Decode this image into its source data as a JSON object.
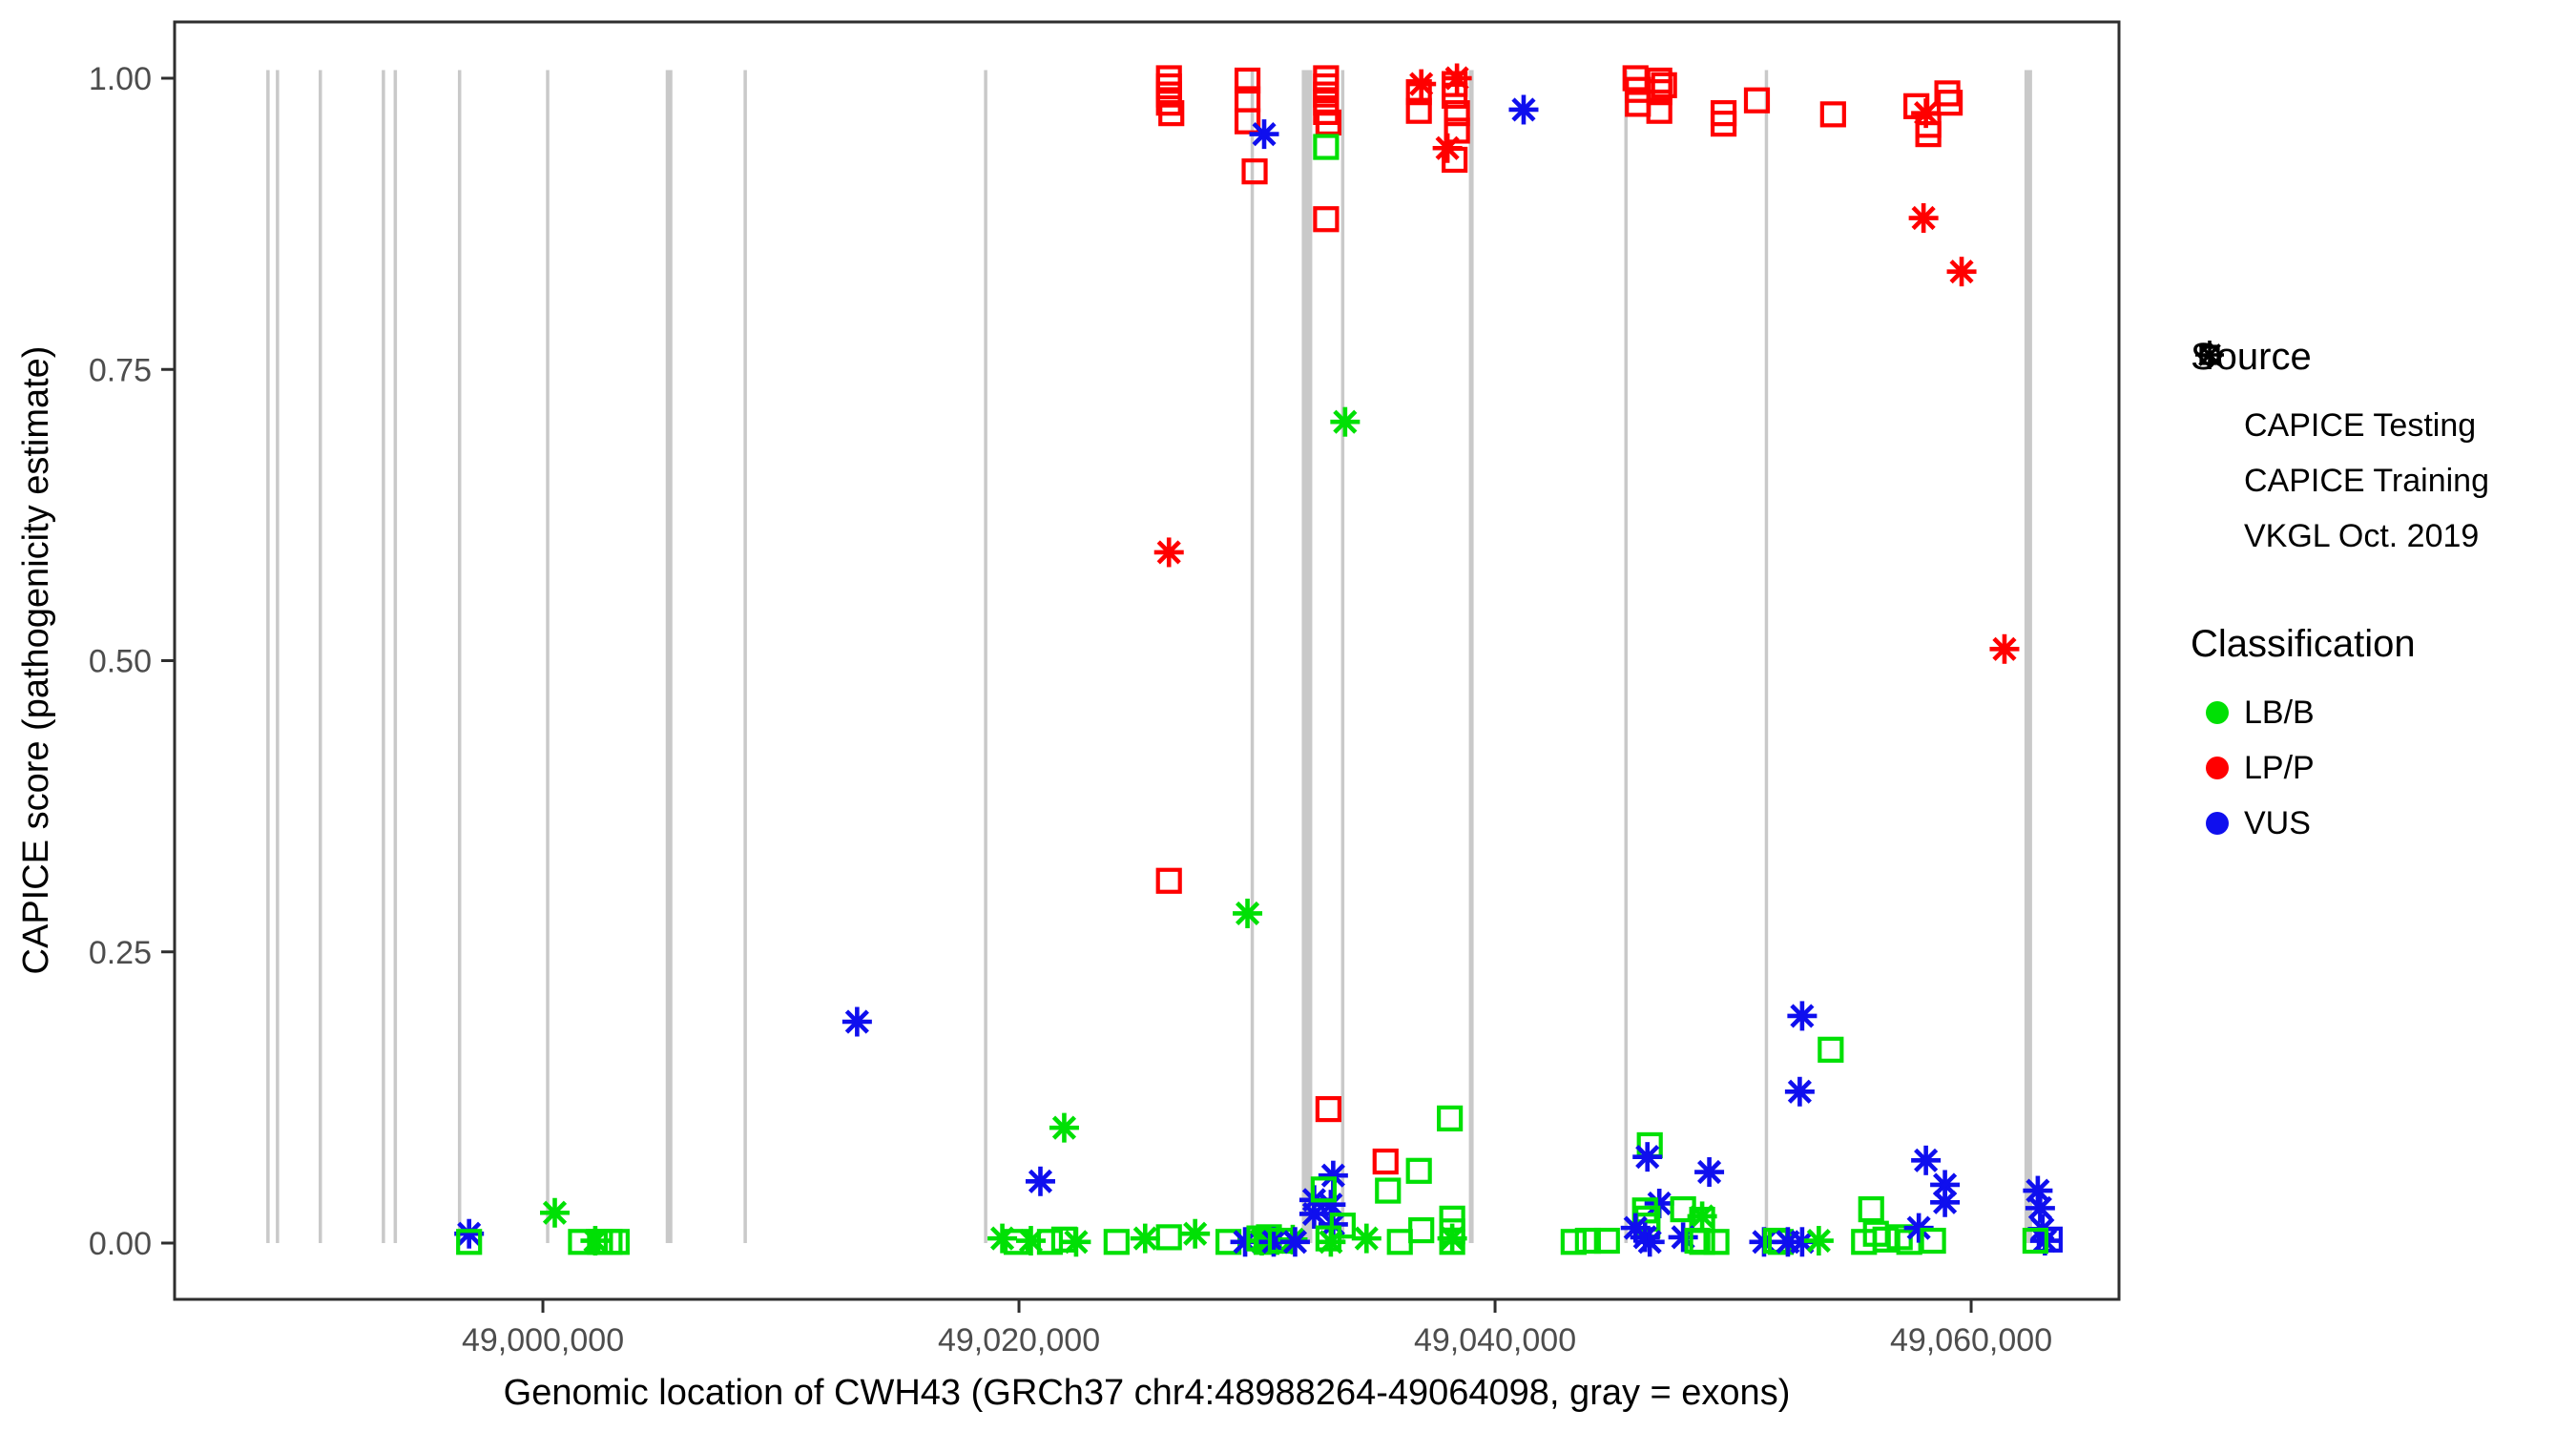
{
  "chart_data": {
    "type": "scatter",
    "title": "",
    "xlabel": "Genomic location of CWH43 (GRCh37 chr4:48988264-49064098, gray = exons)",
    "ylabel": "CAPICE score (pathogenicity estimate)",
    "xlim": [
      48984528,
      49066211
    ],
    "ylim": [
      0,
      1
    ],
    "grid": false,
    "legend_position": "right",
    "gene": {
      "name": "CWH43",
      "assembly": "GRCh37",
      "chromosome": "chr4",
      "start": 48988264,
      "end": 49064098
    },
    "x_ticks": [
      {
        "value": 49000000,
        "label": "49,000,000"
      },
      {
        "value": 49020000,
        "label": "49,020,000"
      },
      {
        "value": 49040000,
        "label": "49,040,000"
      },
      {
        "value": 49060000,
        "label": "49,060,000"
      }
    ],
    "y_ticks": [
      {
        "value": 0.0,
        "label": "0.00"
      },
      {
        "value": 0.25,
        "label": "0.25"
      },
      {
        "value": 0.5,
        "label": "0.50"
      },
      {
        "value": 0.75,
        "label": "0.75"
      },
      {
        "value": 1.0,
        "label": "1.00"
      }
    ],
    "exon_fields": [
      "center_bp",
      "width_bp"
    ],
    "exons": [
      [
        48988450,
        140
      ],
      [
        48988850,
        140
      ],
      [
        48990650,
        140
      ],
      [
        48993300,
        140
      ],
      [
        48993800,
        140
      ],
      [
        48996500,
        140
      ],
      [
        49000200,
        140
      ],
      [
        49005300,
        280
      ],
      [
        49008500,
        140
      ],
      [
        49018600,
        140
      ],
      [
        49029800,
        140
      ],
      [
        49032100,
        440
      ],
      [
        49033600,
        140
      ],
      [
        49039000,
        200
      ],
      [
        49045500,
        140
      ],
      [
        49051400,
        140
      ],
      [
        49062400,
        320
      ]
    ],
    "point_fields": [
      "x_bp",
      "capice_score",
      "source",
      "classification"
    ],
    "points": [
      [
        48996900,
        0.008,
        "vkgl",
        "VUS"
      ],
      [
        48996900,
        0.001,
        "training",
        "LB/B"
      ],
      [
        49000500,
        0.026,
        "vkgl",
        "LB/B"
      ],
      [
        49001600,
        0.001,
        "training",
        "LB/B"
      ],
      [
        49002200,
        0.002,
        "vkgl",
        "LB/B"
      ],
      [
        49002400,
        0.001,
        "training",
        "LB/B"
      ],
      [
        49002800,
        0.001,
        "training",
        "LB/B"
      ],
      [
        49003100,
        0.001,
        "training",
        "LB/B"
      ],
      [
        49013200,
        0.19,
        "vkgl",
        "VUS"
      ],
      [
        49019300,
        0.004,
        "vkgl",
        "LB/B"
      ],
      [
        49019900,
        0.001,
        "training",
        "LB/B"
      ],
      [
        49020500,
        0.002,
        "vkgl",
        "LB/B"
      ],
      [
        49020900,
        0.053,
        "vkgl",
        "VUS"
      ],
      [
        49021300,
        0.001,
        "training",
        "LB/B"
      ],
      [
        49021900,
        0.099,
        "vkgl",
        "LB/B"
      ],
      [
        49021900,
        0.003,
        "training",
        "LB/B"
      ],
      [
        49022400,
        0.001,
        "vkgl",
        "LB/B"
      ],
      [
        49024100,
        0.001,
        "training",
        "LB/B"
      ],
      [
        49025300,
        0.004,
        "vkgl",
        "LB/B"
      ],
      [
        49026300,
        0.005,
        "training",
        "LB/B"
      ],
      [
        49026300,
        1.0,
        "training",
        "LP/P"
      ],
      [
        49026300,
        0.993,
        "training",
        "LP/P"
      ],
      [
        49026300,
        0.986,
        "training",
        "LP/P"
      ],
      [
        49026300,
        0.979,
        "training",
        "LP/P"
      ],
      [
        49026400,
        0.97,
        "training",
        "LP/P"
      ],
      [
        49026300,
        0.593,
        "vkgl",
        "LP/P"
      ],
      [
        49026300,
        0.311,
        "training",
        "LP/P"
      ],
      [
        49027400,
        0.008,
        "vkgl",
        "LB/B"
      ],
      [
        49028800,
        0.001,
        "training",
        "LB/B"
      ],
      [
        49029500,
        0.001,
        "vkgl",
        "VUS"
      ],
      [
        49029600,
        0.998,
        "training",
        "LP/P"
      ],
      [
        49029600,
        0.982,
        "training",
        "LP/P"
      ],
      [
        49029600,
        0.963,
        "training",
        "LP/P"
      ],
      [
        49029900,
        0.92,
        "training",
        "LP/P"
      ],
      [
        49030300,
        0.952,
        "vkgl",
        "VUS"
      ],
      [
        49029600,
        0.283,
        "vkgl",
        "LB/B"
      ],
      [
        49030100,
        0.004,
        "training",
        "LB/B"
      ],
      [
        49030200,
        0.002,
        "vkgl",
        "LB/B"
      ],
      [
        49030400,
        0.001,
        "training",
        "LB/B"
      ],
      [
        49030500,
        0.005,
        "training",
        "LB/B"
      ],
      [
        49030700,
        0.001,
        "vkgl",
        "VUS"
      ],
      [
        49031000,
        0.002,
        "training",
        "LB/B"
      ],
      [
        49031500,
        0.003,
        "vkgl",
        "LB/B"
      ],
      [
        49031600,
        0.001,
        "vkgl",
        "VUS"
      ],
      [
        49032900,
        1.0,
        "training",
        "LP/P"
      ],
      [
        49032900,
        0.993,
        "training",
        "LP/P"
      ],
      [
        49032900,
        0.986,
        "training",
        "LP/P"
      ],
      [
        49032900,
        0.979,
        "training",
        "LP/P"
      ],
      [
        49032900,
        0.971,
        "training",
        "LP/P"
      ],
      [
        49033000,
        0.962,
        "training",
        "LP/P"
      ],
      [
        49032900,
        0.941,
        "training",
        "LB/B"
      ],
      [
        49032900,
        0.879,
        "training",
        "LP/P"
      ],
      [
        49033700,
        0.705,
        "vkgl",
        "LB/B"
      ],
      [
        49033000,
        0.115,
        "training",
        "LP/P"
      ],
      [
        49033200,
        0.058,
        "vkgl",
        "VUS"
      ],
      [
        49032400,
        0.037,
        "vkgl",
        "VUS"
      ],
      [
        49033100,
        0.033,
        "vkgl",
        "VUS"
      ],
      [
        49032400,
        0.025,
        "vkgl",
        "VUS"
      ],
      [
        49033200,
        0.016,
        "vkgl",
        "VUS"
      ],
      [
        49032800,
        0.046,
        "training",
        "LB/B"
      ],
      [
        49033600,
        0.015,
        "training",
        "LB/B"
      ],
      [
        49033000,
        0.004,
        "training",
        "LB/B"
      ],
      [
        49033100,
        0.001,
        "vkgl",
        "LB/B"
      ],
      [
        49034600,
        0.004,
        "vkgl",
        "LB/B"
      ],
      [
        49035400,
        0.07,
        "training",
        "LP/P"
      ],
      [
        49035500,
        0.045,
        "training",
        "LB/B"
      ],
      [
        49036000,
        0.001,
        "training",
        "LB/B"
      ],
      [
        49036800,
        0.062,
        "training",
        "LB/B"
      ],
      [
        49036900,
        0.011,
        "training",
        "LB/B"
      ],
      [
        49038100,
        0.107,
        "training",
        "LB/B"
      ],
      [
        49038200,
        0.021,
        "training",
        "LB/B"
      ],
      [
        49038200,
        0.01,
        "training",
        "LB/B"
      ],
      [
        49038200,
        0.001,
        "training",
        "LB/B"
      ],
      [
        49038200,
        0.004,
        "vkgl",
        "LB/B"
      ],
      [
        49036900,
        0.995,
        "vkgl",
        "LP/P"
      ],
      [
        49036800,
        0.988,
        "training",
        "LP/P"
      ],
      [
        49036800,
        0.972,
        "training",
        "LP/P"
      ],
      [
        49038400,
        1.0,
        "vkgl",
        "LP/P"
      ],
      [
        49038300,
        0.995,
        "training",
        "LP/P"
      ],
      [
        49038300,
        0.985,
        "training",
        "LP/P"
      ],
      [
        49038400,
        0.97,
        "training",
        "LP/P"
      ],
      [
        49038400,
        0.955,
        "training",
        "LP/P"
      ],
      [
        49038000,
        0.94,
        "vkgl",
        "LP/P"
      ],
      [
        49038300,
        0.93,
        "training",
        "LP/P"
      ],
      [
        49041200,
        0.973,
        "vkgl",
        "VUS"
      ],
      [
        49043300,
        0.001,
        "training",
        "LB/B"
      ],
      [
        49043900,
        0.002,
        "training",
        "LB/B"
      ],
      [
        49044700,
        0.002,
        "training",
        "LB/B"
      ],
      [
        49045900,
        1.0,
        "training",
        "LP/P"
      ],
      [
        49046000,
        0.99,
        "training",
        "LP/P"
      ],
      [
        49046000,
        0.978,
        "training",
        "LP/P"
      ],
      [
        49046900,
        0.998,
        "training",
        "LP/P"
      ],
      [
        49046900,
        0.988,
        "training",
        "LP/P"
      ],
      [
        49047100,
        0.994,
        "training",
        "LP/P"
      ],
      [
        49046900,
        0.972,
        "training",
        "LP/P"
      ],
      [
        49049600,
        0.97,
        "training",
        "LP/P"
      ],
      [
        49049600,
        0.961,
        "training",
        "LP/P"
      ],
      [
        49051000,
        0.981,
        "training",
        "LP/P"
      ],
      [
        49046500,
        0.084,
        "training",
        "LB/B"
      ],
      [
        49046400,
        0.074,
        "vkgl",
        "VUS"
      ],
      [
        49049000,
        0.061,
        "vkgl",
        "VUS"
      ],
      [
        49046900,
        0.034,
        "vkgl",
        "VUS"
      ],
      [
        49046300,
        0.028,
        "training",
        "LB/B"
      ],
      [
        49047900,
        0.029,
        "training",
        "LB/B"
      ],
      [
        49046400,
        0.021,
        "training",
        "LB/B"
      ],
      [
        49046400,
        0.015,
        "training",
        "LB/B"
      ],
      [
        49048700,
        0.023,
        "vkgl",
        "LB/B"
      ],
      [
        49048700,
        0.02,
        "training",
        "LB/B"
      ],
      [
        49045900,
        0.013,
        "vkgl",
        "VUS"
      ],
      [
        49046300,
        0.005,
        "vkgl",
        "VUS"
      ],
      [
        49046500,
        0.001,
        "vkgl",
        "VUS"
      ],
      [
        49047900,
        0.005,
        "vkgl",
        "VUS"
      ],
      [
        49048500,
        0.002,
        "training",
        "LB/B"
      ],
      [
        49048700,
        0.001,
        "training",
        "LB/B"
      ],
      [
        49049300,
        0.001,
        "training",
        "LB/B"
      ],
      [
        49051300,
        0.001,
        "vkgl",
        "VUS"
      ],
      [
        49051800,
        0.002,
        "training",
        "LB/B"
      ],
      [
        49052000,
        0.001,
        "training",
        "LB/B"
      ],
      [
        49052300,
        0.001,
        "vkgl",
        "VUS"
      ],
      [
        49052900,
        0.001,
        "vkgl",
        "VUS"
      ],
      [
        49053600,
        0.002,
        "vkgl",
        "LB/B"
      ],
      [
        49052900,
        0.195,
        "vkgl",
        "VUS"
      ],
      [
        49054100,
        0.166,
        "training",
        "LB/B"
      ],
      [
        49052800,
        0.13,
        "vkgl",
        "VUS"
      ],
      [
        49054200,
        0.969,
        "training",
        "LP/P"
      ],
      [
        49057700,
        0.976,
        "training",
        "LP/P"
      ],
      [
        49058100,
        0.97,
        "vkgl",
        "LP/P"
      ],
      [
        49058200,
        0.96,
        "training",
        "LP/P"
      ],
      [
        49058200,
        0.952,
        "training",
        "LP/P"
      ],
      [
        49059000,
        0.987,
        "training",
        "LP/P"
      ],
      [
        49059100,
        0.979,
        "training",
        "LP/P"
      ],
      [
        49058000,
        0.88,
        "vkgl",
        "LP/P"
      ],
      [
        49059600,
        0.834,
        "vkgl",
        "LP/P"
      ],
      [
        49061400,
        0.51,
        "vkgl",
        "LP/P"
      ],
      [
        49058100,
        0.071,
        "vkgl",
        "VUS"
      ],
      [
        49055500,
        0.001,
        "training",
        "LB/B"
      ],
      [
        49055800,
        0.029,
        "training",
        "LB/B"
      ],
      [
        49056000,
        0.008,
        "training",
        "LB/B"
      ],
      [
        49056400,
        0.003,
        "training",
        "LB/B"
      ],
      [
        49057000,
        0.005,
        "training",
        "LB/B"
      ],
      [
        49057400,
        0.001,
        "training",
        "LB/B"
      ],
      [
        49057800,
        0.013,
        "vkgl",
        "VUS"
      ],
      [
        49058400,
        0.002,
        "training",
        "LB/B"
      ],
      [
        49058900,
        0.05,
        "vkgl",
        "VUS"
      ],
      [
        49058900,
        0.035,
        "vkgl",
        "VUS"
      ],
      [
        49062800,
        0.045,
        "vkgl",
        "VUS"
      ],
      [
        49062900,
        0.03,
        "vkgl",
        "VUS"
      ],
      [
        49063000,
        0.012,
        "vkgl",
        "VUS"
      ],
      [
        49063100,
        0.002,
        "vkgl",
        "VUS"
      ],
      [
        49063300,
        0.003,
        "training",
        "VUS"
      ],
      [
        49062700,
        0.002,
        "training",
        "LB/B"
      ]
    ]
  },
  "legend": {
    "source": {
      "title": "Source",
      "items": [
        {
          "label": "CAPICE Testing",
          "marker": "diamond",
          "key": "testing"
        },
        {
          "label": "CAPICE Training",
          "marker": "square",
          "key": "training"
        },
        {
          "label": "VKGL Oct. 2019",
          "marker": "asterisk",
          "key": "vkgl"
        }
      ]
    },
    "classification": {
      "title": "Classification",
      "items": [
        {
          "label": "LB/B",
          "color": "#00E005"
        },
        {
          "label": "LP/P",
          "color": "#FF0000"
        },
        {
          "label": "VUS",
          "color": "#0F0FEE"
        }
      ]
    }
  },
  "colors": {
    "exon_gray": "#C9C9C9",
    "panel_border": "#2E2E2E",
    "tick_label": "#4D4D4D",
    "background": "#FFFFFF"
  }
}
